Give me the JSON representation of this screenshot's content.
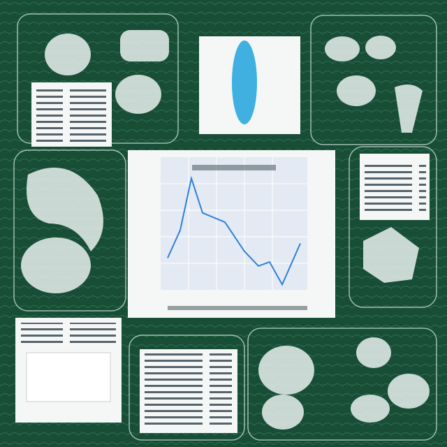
{
  "chart_data": {
    "type": "line",
    "color": "#2f7fd8",
    "x": [
      0.5,
      1.4,
      2.2,
      3.0,
      4.6,
      6.0,
      7.0,
      7.8,
      8.7,
      10.0
    ],
    "values": [
      2.4,
      4.5,
      8.4,
      5.8,
      5.1,
      2.9,
      1.8,
      2.1,
      0.4,
      3.5
    ],
    "xlim": [
      0,
      10.5
    ],
    "ylim": [
      0,
      10
    ]
  }
}
